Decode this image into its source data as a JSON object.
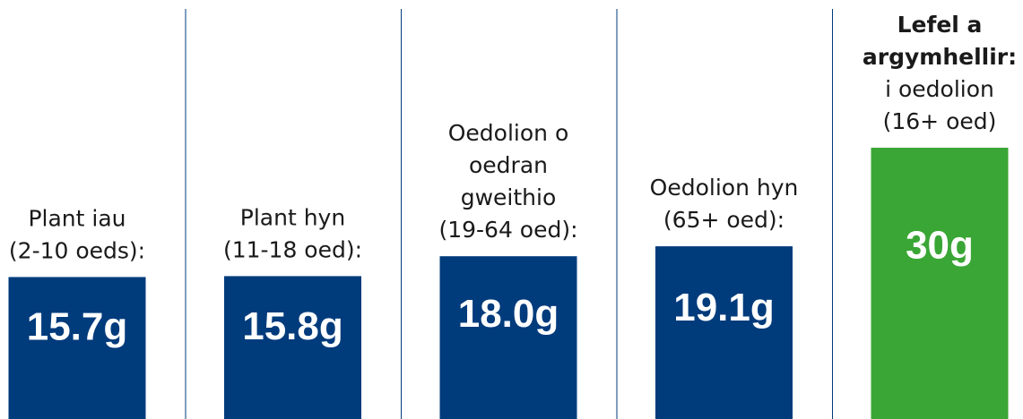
{
  "chart_data": {
    "type": "bar",
    "categories": [
      [
        {
          "text": "Plant iau"
        },
        {
          "text": "(2-10 oeds):"
        }
      ],
      [
        {
          "text": "Plant hyn"
        },
        {
          "text": "(11-18 oed):"
        }
      ],
      [
        {
          "text": "Oedolion o"
        },
        {
          "text": "oedran"
        },
        {
          "text": "gweithio"
        },
        {
          "text": "(19-64 oed):"
        }
      ],
      [
        {
          "text": "Oedolion hyn"
        },
        {
          "text": "(65+ oed):"
        }
      ],
      [
        {
          "text": "Lefel a",
          "bold": true
        },
        {
          "text": "argymhellir:",
          "bold": true
        },
        {
          "text": "i oedolion"
        },
        {
          "text": "(16+ oed)"
        }
      ]
    ],
    "values": [
      15.7,
      15.8,
      18.0,
      19.1,
      30
    ],
    "value_labels": [
      "15.7g",
      "15.8g",
      "18.0g",
      "19.1g",
      "30g"
    ],
    "colors": [
      "#003b7c",
      "#003b7c",
      "#003b7c",
      "#003b7c",
      "#3aa635"
    ],
    "dividers": true
  }
}
